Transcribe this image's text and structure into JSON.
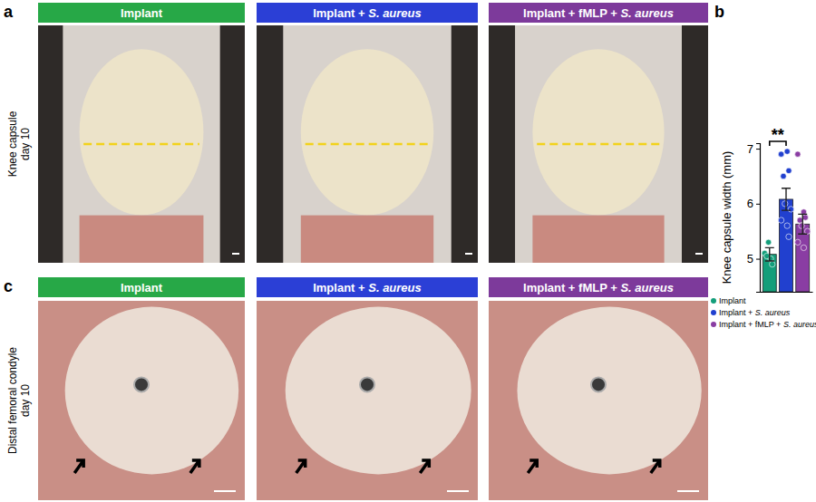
{
  "figure": {
    "italic_term": "S. aureus",
    "header_colors": [
      "#27a847",
      "#2b3fd6",
      "#7d3a9b"
    ],
    "chart_letter": "b",
    "panels": [
      {
        "letter": "a",
        "row_label": [
          "Knee capsule",
          "day 10"
        ],
        "headers": [
          "Implant",
          "Implant + S. aureus",
          "Implant + fMLP + S. aureus"
        ]
      },
      {
        "letter": "c",
        "row_label": [
          "Distal femoral condyle",
          "day 10"
        ],
        "headers": [
          "Implant",
          "Implant + S. aureus",
          "Implant + fMLP + S. aureus"
        ]
      }
    ]
  },
  "chart_data": {
    "type": "bar",
    "ylabel": "Knee capsule width (mm)",
    "categories": [
      "Implant",
      "Implant + S. aureus",
      "Implant + fMLP + S. aureus"
    ],
    "values": [
      5.08,
      6.08,
      5.63
    ],
    "errors": [
      0.12,
      0.2,
      0.18
    ],
    "points": [
      [
        5.1,
        5.0,
        4.9,
        5.05,
        5.3
      ],
      [
        6.9,
        6.95,
        6.6,
        6.5,
        6.0,
        5.9,
        5.7,
        5.6,
        5.4
      ],
      [
        6.9,
        5.85,
        5.75,
        5.7,
        5.6,
        5.5,
        5.3,
        5.2
      ]
    ],
    "colors": [
      "#139e7a",
      "#2140cf",
      "#8a3da3"
    ],
    "ylim": [
      4.4,
      7.1
    ],
    "yticks": [
      5,
      6,
      7
    ],
    "legend": "bottom",
    "tick_labels": "y",
    "significance": [
      {
        "from": 0,
        "to": 1,
        "label": "**"
      }
    ]
  }
}
